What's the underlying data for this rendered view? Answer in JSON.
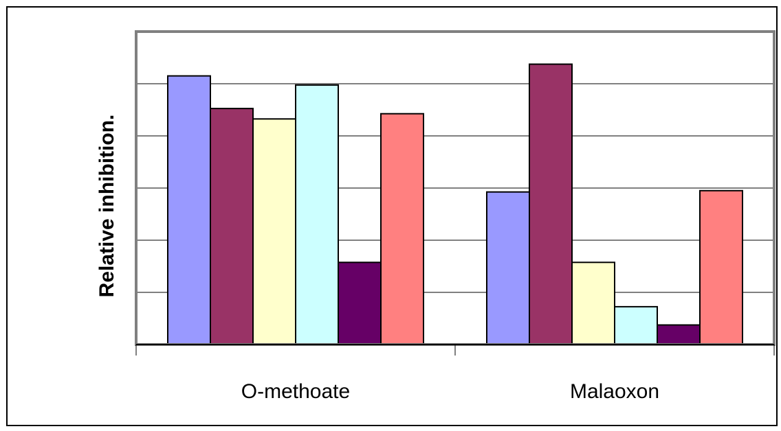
{
  "chart_data": {
    "type": "bar",
    "title": "",
    "xlabel": "",
    "ylabel": "Relative inhibition.",
    "categories": [
      "O-methoate",
      "Malaoxon"
    ],
    "series": [
      {
        "color": "#9999FF",
        "values": [
          0.103,
          0.0585
        ]
      },
      {
        "color": "#993366",
        "values": [
          0.0905,
          0.1075
        ]
      },
      {
        "color": "#FFFFCC",
        "values": [
          0.0865,
          0.0315
        ]
      },
      {
        "color": "#CCFFFF",
        "values": [
          0.0995,
          0.0145
        ]
      },
      {
        "color": "#660066",
        "values": [
          0.0315,
          0.0075
        ]
      },
      {
        "color": "#FF8080",
        "values": [
          0.0885,
          0.059
        ]
      }
    ],
    "ylim": [
      0,
      0.12
    ],
    "y_gridlines": [
      0.02,
      0.04,
      0.06,
      0.08,
      0.1
    ],
    "grid": true,
    "legend": "none",
    "colors": {
      "plot_border": "#808080",
      "gridline": "#000000",
      "bar_outline": "#000000"
    }
  }
}
